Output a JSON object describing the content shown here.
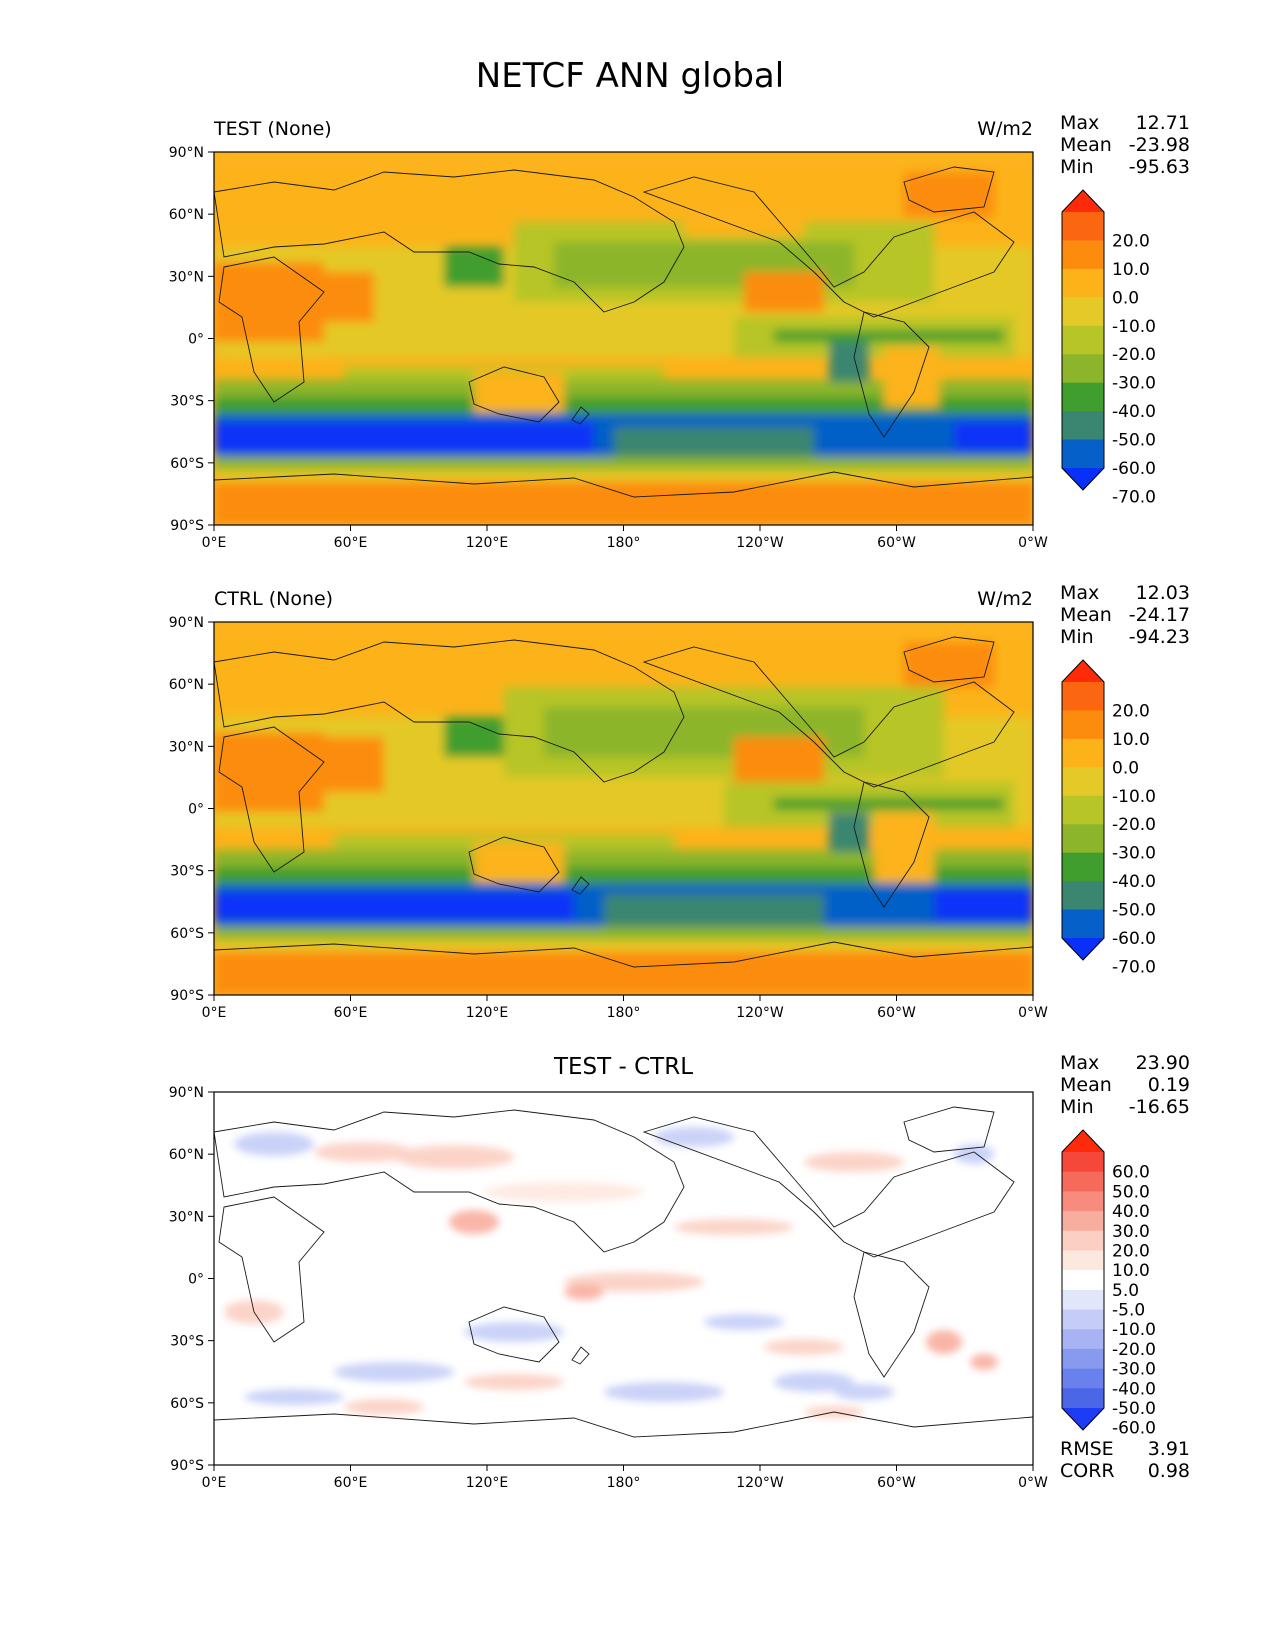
{
  "figure": {
    "title": "NETCF ANN global"
  },
  "map_axes": {
    "lat_ticks": [
      "90°N",
      "60°N",
      "30°N",
      "0°",
      "30°S",
      "60°S",
      "90°S"
    ],
    "lon_ticks": [
      "0°E",
      "60°E",
      "120°E",
      "180°",
      "120°W",
      "60°W",
      "0°W"
    ]
  },
  "panels": [
    {
      "id": "test",
      "title": "TEST (None)",
      "units": "W/m2",
      "stats": {
        "max_label": "Max",
        "max": "12.71",
        "mean_label": "Mean",
        "mean": "-23.98",
        "min_label": "Min",
        "min": "-95.63"
      },
      "colorbar": {
        "labels": [
          "20.0",
          "10.0",
          "0.0",
          "-10.0",
          "-20.0",
          "-30.0",
          "-40.0",
          "-50.0",
          "-60.0",
          "-70.0"
        ],
        "colors": [
          "#ff2a0a",
          "#fb6610",
          "#fc8c0e",
          "#fcb31a",
          "#e4c927",
          "#b7c526",
          "#8cb52c",
          "#3f9e2e",
          "#3b8670",
          "#0560c8",
          "#0830f8"
        ]
      }
    },
    {
      "id": "ctrl",
      "title": "CTRL (None)",
      "units": "W/m2",
      "stats": {
        "max_label": "Max",
        "max": "12.03",
        "mean_label": "Mean",
        "mean": "-24.17",
        "min_label": "Min",
        "min": "-94.23"
      },
      "colorbar": {
        "labels": [
          "20.0",
          "10.0",
          "0.0",
          "-10.0",
          "-20.0",
          "-30.0",
          "-40.0",
          "-50.0",
          "-60.0",
          "-70.0"
        ],
        "colors": [
          "#ff2a0a",
          "#fb6610",
          "#fc8c0e",
          "#fcb31a",
          "#e4c927",
          "#b7c526",
          "#8cb52c",
          "#3f9e2e",
          "#3b8670",
          "#0560c8",
          "#0830f8"
        ]
      }
    },
    {
      "id": "diff",
      "title": "TEST - CTRL",
      "stats": {
        "max_label": "Max",
        "max": "23.90",
        "mean_label": "Mean",
        "mean": "0.19",
        "min_label": "Min",
        "min": "-16.65"
      },
      "metrics": {
        "rmse_label": "RMSE",
        "rmse": "3.91",
        "corr_label": "CORR",
        "corr": "0.98"
      },
      "colorbar": {
        "labels": [
          "60.0",
          "50.0",
          "40.0",
          "30.0",
          "20.0",
          "10.0",
          "5.0",
          "-5.0",
          "-10.0",
          "-20.0",
          "-30.0",
          "-40.0",
          "-50.0",
          "-60.0"
        ],
        "colors": [
          "#ff2a0a",
          "#f5473a",
          "#f66a5c",
          "#f78c7e",
          "#f9ad9f",
          "#fbcfc2",
          "#fde8e0",
          "#ffffff",
          "#e2e6fb",
          "#c5cdf7",
          "#a7b3f3",
          "#889af0",
          "#6a80ec",
          "#4b67e8",
          "#1d3cf4"
        ]
      }
    }
  ]
}
